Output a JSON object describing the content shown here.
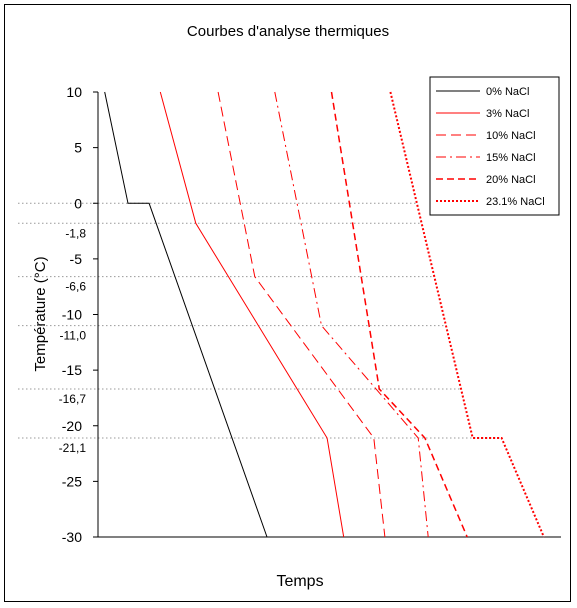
{
  "chart_data": {
    "type": "line",
    "title": "Courbes d'analyse thermiques",
    "xlabel": "Temps",
    "ylabel": "Température (°C)",
    "ylim": [
      -30,
      10
    ],
    "yticks": [
      {
        "value": 10,
        "label": "10"
      },
      {
        "value": 5,
        "label": "5"
      },
      {
        "value": 0,
        "label": "0"
      },
      {
        "value": -5,
        "label": "-5"
      },
      {
        "value": -10,
        "label": "-10"
      },
      {
        "value": -15,
        "label": "-15"
      },
      {
        "value": -20,
        "label": "-20"
      },
      {
        "value": -25,
        "label": "-25"
      },
      {
        "value": -30,
        "label": "-30"
      }
    ],
    "reference_lines": [
      {
        "value": 0,
        "label": ""
      },
      {
        "value": -1.8,
        "label": "-1,8"
      },
      {
        "value": -6.6,
        "label": "-6,6"
      },
      {
        "value": -11.0,
        "label": "-11,0"
      },
      {
        "value": -16.7,
        "label": "-16,7"
      },
      {
        "value": -21.1,
        "label": "-21,1"
      }
    ],
    "legend_position": "top-right",
    "series": [
      {
        "name": "0% NaCl",
        "color": "#000000",
        "dash": "solid",
        "width": 1,
        "points": [
          [
            0.6,
            10
          ],
          [
            2.7,
            0
          ],
          [
            4.6,
            0
          ],
          [
            15.2,
            -30
          ]
        ]
      },
      {
        "name": "3% NaCl",
        "color": "#ff0000",
        "dash": "solid",
        "width": 1,
        "points": [
          [
            5.6,
            10
          ],
          [
            8.8,
            -1.8
          ],
          [
            20.6,
            -21.1
          ],
          [
            22.1,
            -30
          ]
        ]
      },
      {
        "name": "10% NaCl",
        "color": "#ff0000",
        "dash": "10,5",
        "width": 1,
        "points": [
          [
            10.8,
            10
          ],
          [
            14.1,
            -6.6
          ],
          [
            24.8,
            -21.1
          ],
          [
            25.8,
            -30
          ]
        ]
      },
      {
        "name": "15% NaCl",
        "color": "#ff0000",
        "dash": "10,4,2,4",
        "width": 1,
        "points": [
          [
            15.9,
            10
          ],
          [
            20.1,
            -11.0
          ],
          [
            28.8,
            -21.1
          ],
          [
            29.7,
            -30
          ]
        ]
      },
      {
        "name": "20% NaCl",
        "color": "#ff0000",
        "dash": "7,4",
        "width": 1.5,
        "points": [
          [
            21.0,
            10
          ],
          [
            25.3,
            -16.7
          ],
          [
            29.4,
            -21.1
          ],
          [
            33.2,
            -30
          ]
        ]
      },
      {
        "name": "23.1% NaCl",
        "color": "#ff0000",
        "dash": "2,2",
        "width": 2,
        "points": [
          [
            26.3,
            10
          ],
          [
            33.7,
            -21.1
          ],
          [
            36.3,
            -21.1
          ],
          [
            40.1,
            -30
          ]
        ]
      }
    ]
  }
}
